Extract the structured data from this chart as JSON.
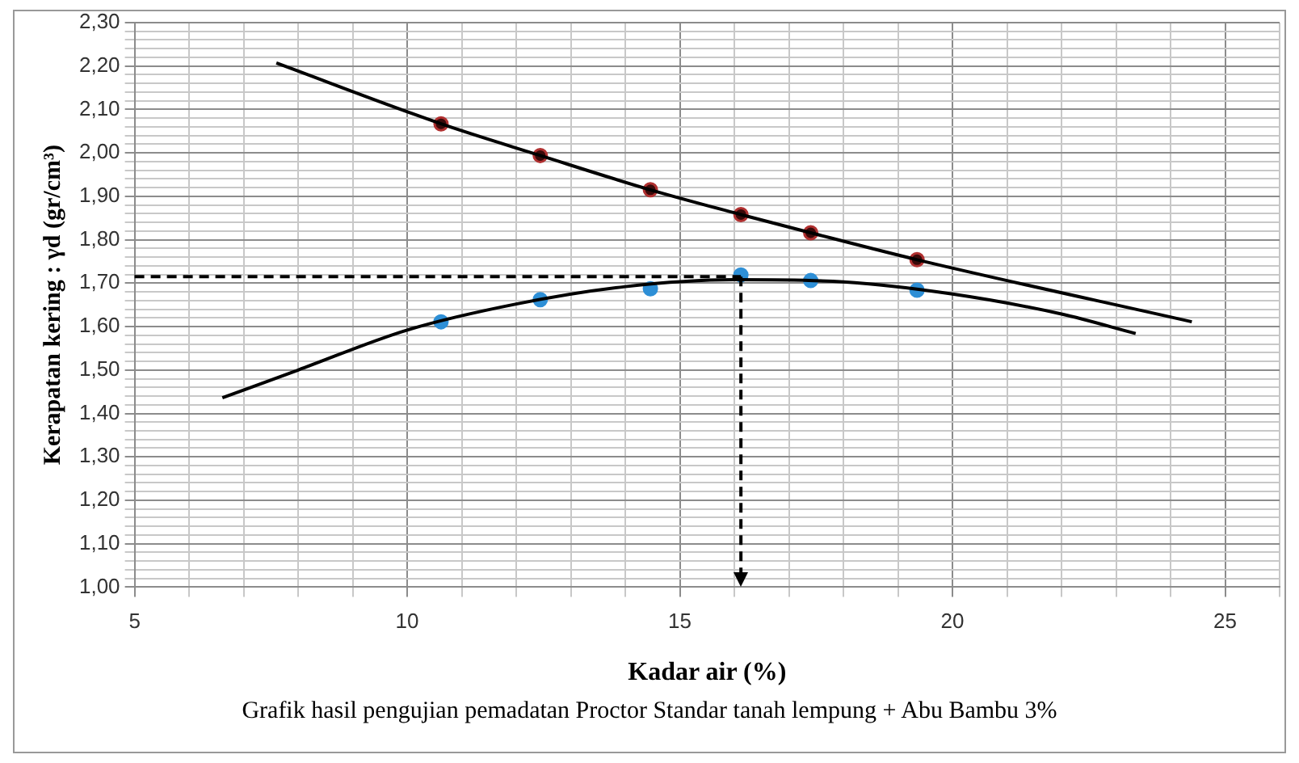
{
  "chart_data": {
    "type": "scatter",
    "xlabel": "Kadar air (%)",
    "ylabel": "Kerapatan kering : γd (gr/cm³)",
    "annotations": [
      "Grafik hasil pengujian pemadatan Proctor Standar tanah lempung + Abu Bambu 3%"
    ],
    "xlim": [
      5,
      26
    ],
    "xticks": [
      5,
      {
        "value": 6,
        "label": null
      },
      {
        "value": 7,
        "label": null
      },
      {
        "value": 8,
        "label": null
      },
      {
        "value": 9,
        "label": null
      },
      10,
      {
        "value": 11,
        "label": null
      },
      {
        "value": 12,
        "label": null
      },
      {
        "value": 13,
        "label": null
      },
      {
        "value": 14,
        "label": null
      },
      15,
      {
        "value": 16,
        "label": null
      },
      {
        "value": 17,
        "label": null
      },
      {
        "value": 18,
        "label": null
      },
      {
        "value": 19,
        "label": null
      },
      20,
      {
        "value": 21,
        "label": null
      },
      {
        "value": 22,
        "label": null
      },
      {
        "value": 23,
        "label": null
      },
      {
        "value": 24,
        "label": null
      },
      25,
      {
        "value": 26,
        "label": null
      }
    ],
    "ylim": [
      1.0,
      2.3
    ],
    "yticks": [
      {
        "value": 1.0,
        "label": "1,00"
      },
      {
        "value": 1.02,
        "label": null
      },
      {
        "value": 1.04,
        "label": null
      },
      {
        "value": 1.06,
        "label": null
      },
      {
        "value": 1.08,
        "label": null
      },
      {
        "value": 1.1,
        "label": "1,10"
      },
      {
        "value": 1.12,
        "label": null
      },
      {
        "value": 1.14,
        "label": null
      },
      {
        "value": 1.16,
        "label": null
      },
      {
        "value": 1.18,
        "label": null
      },
      {
        "value": 1.2,
        "label": "1,20"
      },
      {
        "value": 1.22,
        "label": null
      },
      {
        "value": 1.24,
        "label": null
      },
      {
        "value": 1.26,
        "label": null
      },
      {
        "value": 1.28,
        "label": null
      },
      {
        "value": 1.3,
        "label": "1,30"
      },
      {
        "value": 1.32,
        "label": null
      },
      {
        "value": 1.34,
        "label": null
      },
      {
        "value": 1.36,
        "label": null
      },
      {
        "value": 1.38,
        "label": null
      },
      {
        "value": 1.4,
        "label": "1,40"
      },
      {
        "value": 1.42,
        "label": null
      },
      {
        "value": 1.44,
        "label": null
      },
      {
        "value": 1.46,
        "label": null
      },
      {
        "value": 1.48,
        "label": null
      },
      {
        "value": 1.5,
        "label": "1,50"
      },
      {
        "value": 1.52,
        "label": null
      },
      {
        "value": 1.54,
        "label": null
      },
      {
        "value": 1.56,
        "label": null
      },
      {
        "value": 1.58,
        "label": null
      },
      {
        "value": 1.6,
        "label": "1,60"
      },
      {
        "value": 1.62,
        "label": null
      },
      {
        "value": 1.64,
        "label": null
      },
      {
        "value": 1.66,
        "label": null
      },
      {
        "value": 1.68,
        "label": null
      },
      {
        "value": 1.7,
        "label": "1,70"
      },
      {
        "value": 1.72,
        "label": null
      },
      {
        "value": 1.74,
        "label": null
      },
      {
        "value": 1.76,
        "label": null
      },
      {
        "value": 1.78,
        "label": null
      },
      {
        "value": 1.8,
        "label": "1,80"
      },
      {
        "value": 1.82,
        "label": null
      },
      {
        "value": 1.84,
        "label": null
      },
      {
        "value": 1.86,
        "label": null
      },
      {
        "value": 1.88,
        "label": null
      },
      {
        "value": 1.9,
        "label": "1,90"
      },
      {
        "value": 1.92,
        "label": null
      },
      {
        "value": 1.94,
        "label": null
      },
      {
        "value": 1.96,
        "label": null
      },
      {
        "value": 1.98,
        "label": null
      },
      {
        "value": 2.0,
        "label": "2,00"
      },
      {
        "value": 2.02,
        "label": null
      },
      {
        "value": 2.04,
        "label": null
      },
      {
        "value": 2.06,
        "label": null
      },
      {
        "value": 2.08,
        "label": null
      },
      {
        "value": 2.1,
        "label": "2,10"
      },
      {
        "value": 2.12,
        "label": null
      },
      {
        "value": 2.14,
        "label": null
      },
      {
        "value": 2.16,
        "label": null
      },
      {
        "value": 2.18,
        "label": null
      },
      {
        "value": 2.2,
        "label": "2,20"
      },
      {
        "value": 2.22,
        "label": null
      },
      {
        "value": 2.24,
        "label": null
      },
      {
        "value": 2.26,
        "label": null
      },
      {
        "value": 2.28,
        "label": null
      },
      {
        "value": 2.3,
        "label": "2,30"
      }
    ],
    "grid": true,
    "series": [
      {
        "type": "line",
        "color": "#000000",
        "marker": "none",
        "x": [
          7.6,
          10.62,
          12.44,
          14.46,
          16.12,
          17.4,
          19.35,
          24.39
        ],
        "values": [
          2.207,
          2.067,
          1.994,
          1.915,
          1.858,
          1.816,
          1.754,
          1.611
        ]
      },
      {
        "type": "line",
        "color": "#000000",
        "marker": "none",
        "x": [
          6.61,
          8,
          10,
          12,
          14,
          16,
          18,
          20,
          22,
          23.36
        ],
        "values": [
          1.436,
          1.5,
          1.592,
          1.652,
          1.692,
          1.708,
          1.703,
          1.675,
          1.629,
          1.584
        ]
      },
      {
        "color": "#b03030",
        "marker": "circle",
        "x": [
          10.62,
          12.44,
          14.46,
          16.12,
          17.4,
          19.35
        ],
        "values": [
          2.067,
          1.994,
          1.915,
          1.858,
          1.816,
          1.754
        ]
      },
      {
        "color": "#2e8fd6",
        "marker": "circle",
        "x": [
          10.62,
          12.44,
          14.46,
          16.12,
          17.4,
          19.35
        ],
        "values": [
          1.611,
          1.662,
          1.687,
          1.719,
          1.706,
          1.684
        ]
      }
    ],
    "ref_lines": [
      {
        "axis": "y",
        "value": 1.715,
        "color": "#000000",
        "line_style": "dashed"
      },
      {
        "axis": "x",
        "value": 16.12,
        "color": "#000000",
        "line_style": "dashed"
      }
    ]
  }
}
